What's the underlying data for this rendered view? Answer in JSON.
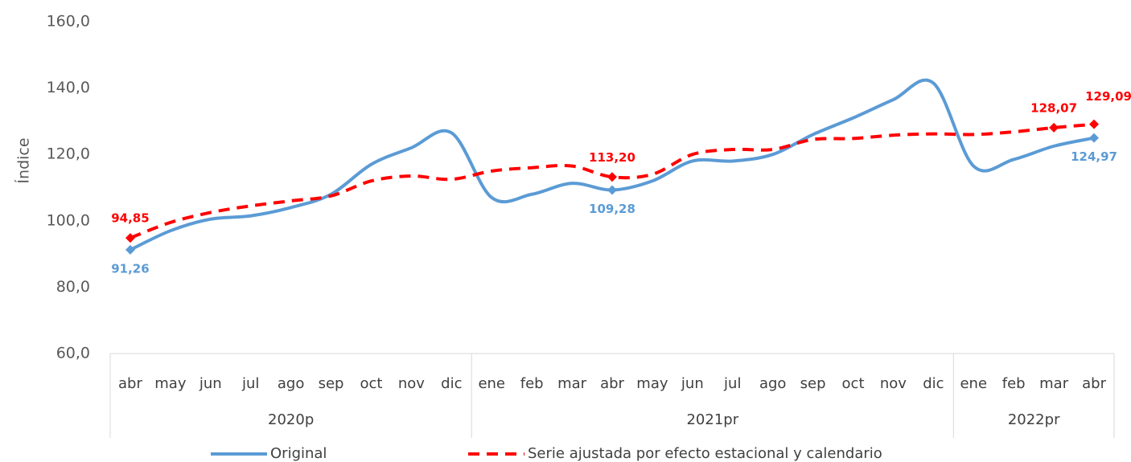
{
  "chart_data": {
    "type": "line",
    "y_label": "Índice",
    "categories": [
      "abr",
      "may",
      "jun",
      "jul",
      "ago",
      "sep",
      "oct",
      "nov",
      "dic",
      "ene",
      "feb",
      "mar",
      "abr",
      "may",
      "jun",
      "jul",
      "ago",
      "sep",
      "oct",
      "nov",
      "dic",
      "ene",
      "feb",
      "mar",
      "abr"
    ],
    "groups": [
      {
        "label": "2020p",
        "span": 9
      },
      {
        "label": "2021pr",
        "span": 12
      },
      {
        "label": "2022pr",
        "span": 4
      }
    ],
    "series": [
      {
        "name": "Original",
        "color": "#5b9bd5",
        "dash": false,
        "values": [
          91.26,
          97,
          100.5,
          101.5,
          104,
          108,
          117,
          122,
          126.5,
          107,
          108,
          111.3,
          109.28,
          112,
          118,
          118,
          120,
          126,
          131,
          136.5,
          141.5,
          116.5,
          118.5,
          122.5,
          124.97
        ],
        "value_labels": [
          "91,26",
          null,
          null,
          null,
          null,
          null,
          null,
          null,
          null,
          null,
          null,
          null,
          "109,28",
          null,
          null,
          null,
          null,
          null,
          null,
          null,
          null,
          null,
          null,
          null,
          "124,97"
        ]
      },
      {
        "name": "Serie ajustada por efecto estacional y calendario",
        "color": "#ff0000",
        "dash": true,
        "values": [
          94.85,
          99.5,
          102.5,
          104.5,
          106,
          107.5,
          112,
          113.5,
          112.5,
          115,
          116,
          116.5,
          113.2,
          114,
          120,
          121.5,
          121.5,
          124.5,
          124.8,
          125.8,
          126.2,
          126,
          126.8,
          128.07,
          129.09
        ],
        "value_labels": [
          "94,85",
          null,
          null,
          null,
          null,
          null,
          null,
          null,
          null,
          null,
          null,
          null,
          "113,20",
          null,
          null,
          null,
          null,
          null,
          null,
          null,
          null,
          null,
          null,
          "128,07",
          "129,09"
        ]
      }
    ],
    "ylim": [
      60,
      160
    ],
    "yticks": [
      {
        "value": 60,
        "label": "60,0"
      },
      {
        "value": 80,
        "label": "80,0"
      },
      {
        "value": 100,
        "label": "100,0"
      },
      {
        "value": 120,
        "label": "120,0"
      },
      {
        "value": 140,
        "label": "140,0"
      },
      {
        "value": 160,
        "label": "160,0"
      }
    ],
    "legend": "bottom"
  }
}
